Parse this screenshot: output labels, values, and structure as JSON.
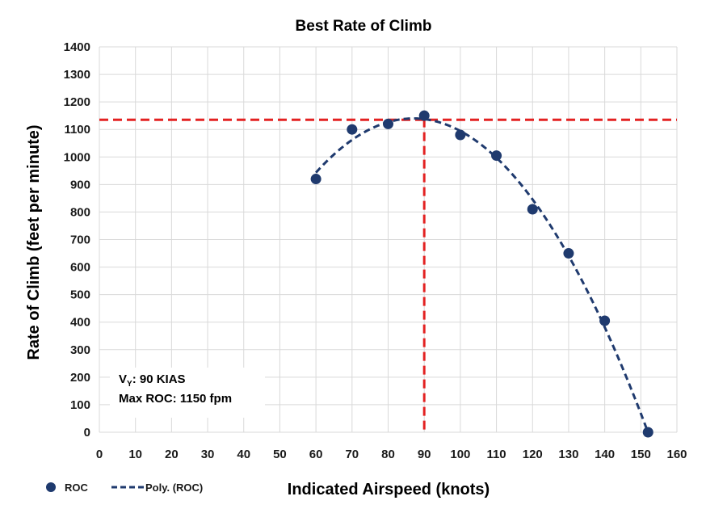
{
  "chart_data": {
    "type": "scatter",
    "title": "Best Rate of Climb",
    "xlabel": "Indicated Airspeed (knots)",
    "ylabel": "Rate of Climb (feet per minute)",
    "xlim": [
      0,
      160
    ],
    "ylim": [
      0,
      1400
    ],
    "xticks": [
      0,
      10,
      20,
      30,
      40,
      50,
      60,
      70,
      80,
      90,
      100,
      110,
      120,
      130,
      140,
      150,
      160
    ],
    "yticks": [
      0,
      100,
      200,
      300,
      400,
      500,
      600,
      700,
      800,
      900,
      1000,
      1100,
      1200,
      1300,
      1400
    ],
    "grid": true,
    "series": [
      {
        "name": "ROC",
        "type": "scatter",
        "color": "#1f3a6e",
        "x": [
          60,
          70,
          80,
          90,
          100,
          110,
          120,
          130,
          140,
          152
        ],
        "y": [
          920,
          1100,
          1120,
          1150,
          1080,
          1005,
          810,
          650,
          405,
          0
        ]
      },
      {
        "name": "Poly. (ROC)",
        "type": "line",
        "style": "dashed",
        "color": "#1f3a6e",
        "poly_vertex": [
          87,
          1140
        ],
        "poly_curvature": 0.27,
        "x_range": [
          60,
          152
        ]
      }
    ],
    "reference_lines": [
      {
        "orientation": "horizontal",
        "value": 1135,
        "color": "#e32222",
        "style": "dashed"
      },
      {
        "orientation": "vertical",
        "value": 90,
        "color": "#e32222",
        "style": "dashed"
      }
    ],
    "annotation": {
      "vy_main": "V",
      "vy_sub": "Y",
      "vy_rest": ": 90 KIAS",
      "max_roc": "Max ROC: 1150 fpm"
    },
    "legend": {
      "placement": "bottom-left",
      "entries": [
        "ROC",
        "Poly. (ROC)"
      ]
    }
  }
}
